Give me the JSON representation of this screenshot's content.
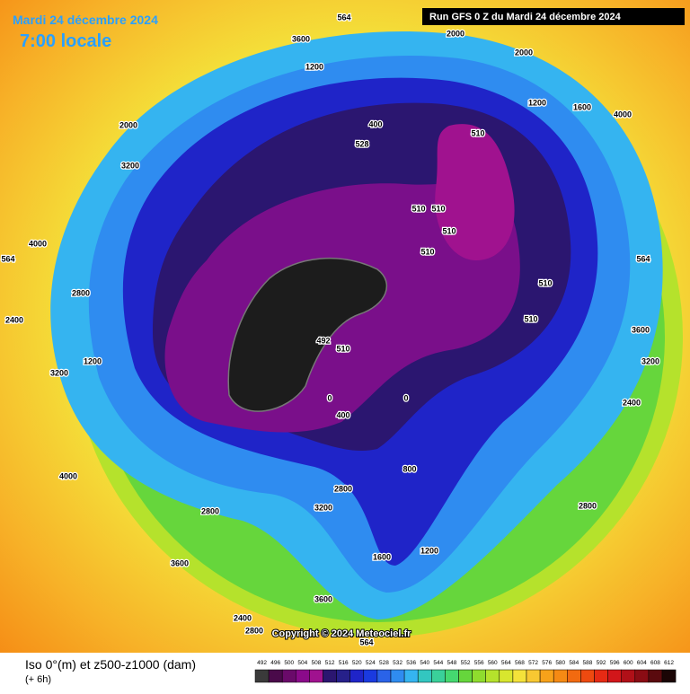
{
  "header": {
    "date": "Mardi 24 décembre 2024",
    "time": "7:00 locale",
    "run": "Run GFS 0 Z du Mardi 24 décembre 2024"
  },
  "copyright": "Copyright © 2024 Meteociel.fr",
  "legend": {
    "title": "Iso 0°(m) et z500-z1000 (dam)",
    "subtitle": "(+ 6h)",
    "scale": [
      492,
      496,
      500,
      504,
      508,
      512,
      516,
      520,
      524,
      528,
      532,
      536,
      540,
      544,
      548,
      552,
      556,
      560,
      564,
      568,
      572,
      576,
      580,
      584,
      588,
      592,
      596,
      600,
      604,
      608,
      612
    ],
    "colors": [
      "#3a3a3a",
      "#4a0a4a",
      "#6a0a6a",
      "#8a0a8a",
      "#a0128f",
      "#2b1670",
      "#26208a",
      "#1f24c8",
      "#1a3ae0",
      "#2a63e8",
      "#2f8cf0",
      "#35b4f0",
      "#33c6c0",
      "#3ad09a",
      "#45d870",
      "#66d63c",
      "#8fdc2e",
      "#b5e22c",
      "#d8e62e",
      "#f4e23a",
      "#f7c832",
      "#f7a21a",
      "#f58a14",
      "#f26a10",
      "#ee4a10",
      "#e62a14",
      "#d2161a",
      "#b01018",
      "#8a0c14",
      "#5a0a0e",
      "#1a0505"
    ]
  },
  "map_labels": [
    "564",
    "2000",
    "2000",
    "3600",
    "1200",
    "1200",
    "1600",
    "4000",
    "400",
    "528",
    "510",
    "510",
    "510",
    "510",
    "510",
    "510",
    "510",
    "492",
    "510",
    "0",
    "0",
    "400",
    "800",
    "1200",
    "2800",
    "3200",
    "3600",
    "2800",
    "4000",
    "3200",
    "1200",
    "2400",
    "2800",
    "4000",
    "3200",
    "2000",
    "564",
    "564",
    "3600",
    "3200",
    "2400",
    "2800",
    "3600",
    "2400",
    "2800",
    "564",
    "1600"
  ]
}
